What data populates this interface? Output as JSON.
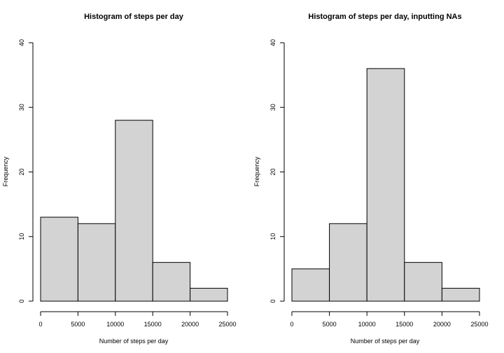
{
  "colors": {
    "bar_fill": "#d3d3d3",
    "bar_stroke": "#000000"
  },
  "chart_data": [
    {
      "type": "bar",
      "title": "Histogram of steps per day",
      "xlabel": "Number of steps per day",
      "ylabel": "Frequency",
      "bins": [
        [
          0,
          5000
        ],
        [
          5000,
          10000
        ],
        [
          10000,
          15000
        ],
        [
          15000,
          20000
        ],
        [
          20000,
          25000
        ]
      ],
      "values": [
        13,
        12,
        28,
        6,
        2
      ],
      "xlim": [
        0,
        25000
      ],
      "ylim": [
        0,
        40
      ],
      "xticks": [
        0,
        5000,
        10000,
        15000,
        20000,
        25000
      ],
      "yticks": [
        0,
        10,
        20,
        30,
        40
      ],
      "grid": false
    },
    {
      "type": "bar",
      "title": "Histogram of steps per day, inputting NAs",
      "xlabel": "Number of steps per day",
      "ylabel": "Frequency",
      "bins": [
        [
          0,
          5000
        ],
        [
          5000,
          10000
        ],
        [
          10000,
          15000
        ],
        [
          15000,
          20000
        ],
        [
          20000,
          25000
        ]
      ],
      "values": [
        5,
        12,
        36,
        6,
        2
      ],
      "xlim": [
        0,
        25000
      ],
      "ylim": [
        0,
        40
      ],
      "xticks": [
        0,
        5000,
        10000,
        15000,
        20000,
        25000
      ],
      "yticks": [
        0,
        10,
        20,
        30,
        40
      ],
      "grid": false
    }
  ]
}
